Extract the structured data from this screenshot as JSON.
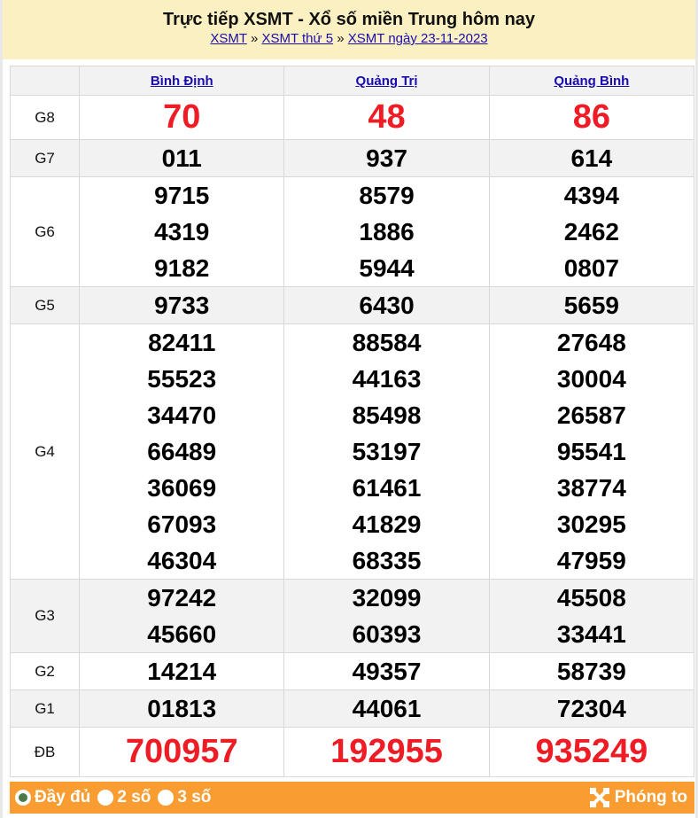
{
  "header": {
    "title": "Trực tiếp XSMT - Xổ số miền Trung hôm nay",
    "breadcrumb": [
      "XSMT",
      "XSMT thứ 5",
      "XSMT ngày 23-11-2023"
    ],
    "separator": "»"
  },
  "provinces": [
    "Bình Định",
    "Quảng Trị",
    "Quảng Bình"
  ],
  "rows": [
    {
      "label": "G8",
      "values": [
        [
          "70"
        ],
        [
          "48"
        ],
        [
          "86"
        ]
      ],
      "highlight": true
    },
    {
      "label": "G7",
      "values": [
        [
          "011"
        ],
        [
          "937"
        ],
        [
          "614"
        ]
      ]
    },
    {
      "label": "G6",
      "values": [
        [
          "9715",
          "4319",
          "9182"
        ],
        [
          "8579",
          "1886",
          "5944"
        ],
        [
          "4394",
          "2462",
          "0807"
        ]
      ]
    },
    {
      "label": "G5",
      "values": [
        [
          "9733"
        ],
        [
          "6430"
        ],
        [
          "5659"
        ]
      ]
    },
    {
      "label": "G4",
      "values": [
        [
          "82411",
          "55523",
          "34470",
          "66489",
          "36069",
          "67093",
          "46304"
        ],
        [
          "88584",
          "44163",
          "85498",
          "53197",
          "61461",
          "41829",
          "68335"
        ],
        [
          "27648",
          "30004",
          "26587",
          "95541",
          "38774",
          "30295",
          "47959"
        ]
      ]
    },
    {
      "label": "G3",
      "values": [
        [
          "97242",
          "45660"
        ],
        [
          "32099",
          "60393"
        ],
        [
          "45508",
          "33441"
        ]
      ]
    },
    {
      "label": "G2",
      "values": [
        [
          "14214"
        ],
        [
          "49357"
        ],
        [
          "58739"
        ]
      ]
    },
    {
      "label": "G1",
      "values": [
        [
          "01813"
        ],
        [
          "44061"
        ],
        [
          "72304"
        ]
      ]
    },
    {
      "label": "ĐB",
      "values": [
        [
          "700957"
        ],
        [
          "192955"
        ],
        [
          "935249"
        ]
      ],
      "highlight": true
    }
  ],
  "footer": {
    "options": [
      {
        "label": "Đầy đủ",
        "selected": true
      },
      {
        "label": "2 số",
        "selected": false
      },
      {
        "label": "3 số",
        "selected": false
      }
    ],
    "zoom_label": "Phóng to"
  },
  "colors": {
    "header_bg": "#fbf0c2",
    "prize_red": "#ee1c25",
    "footer_bg": "#f99d32",
    "link": "#1a0dab"
  }
}
